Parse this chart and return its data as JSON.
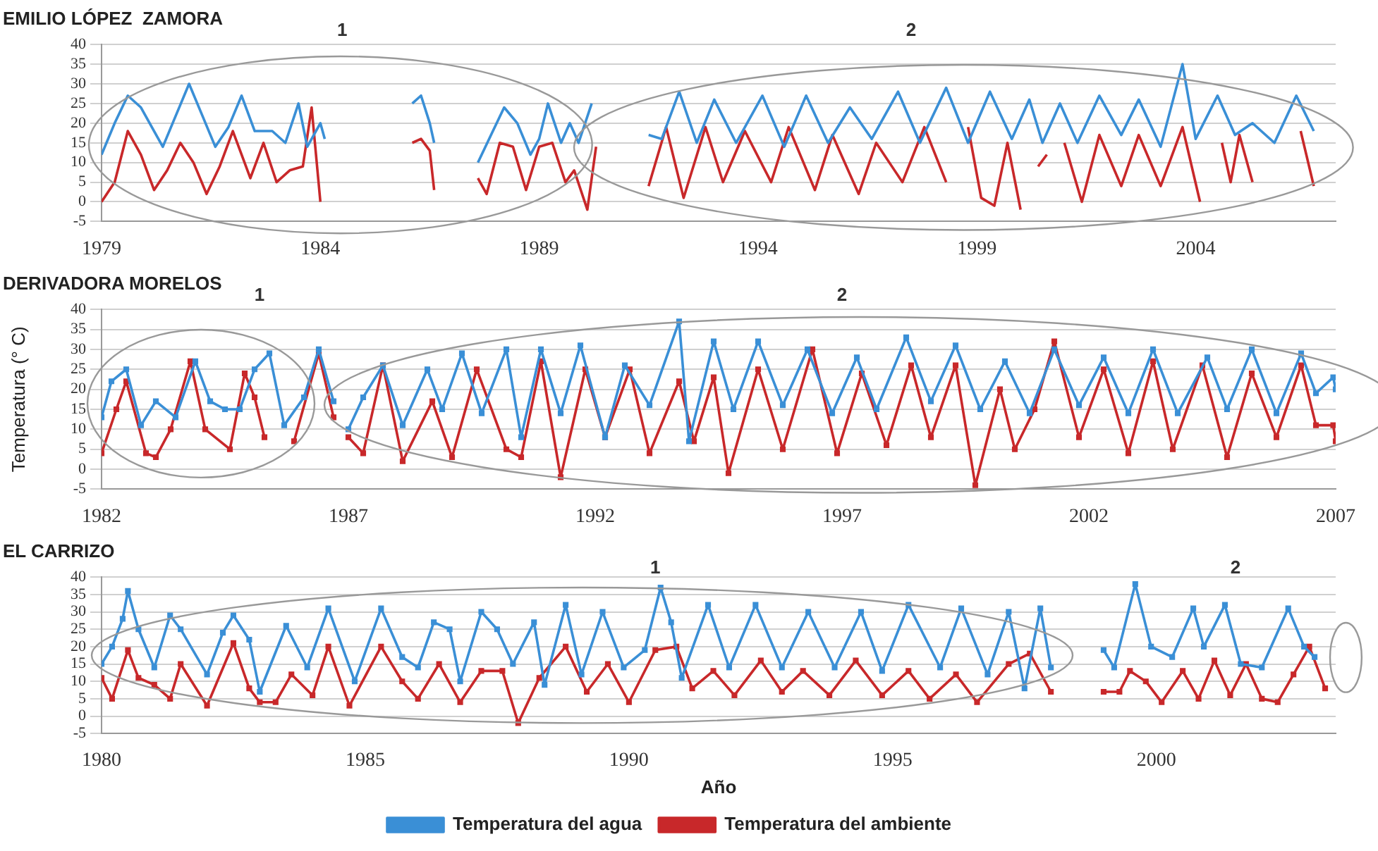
{
  "chart_data": [
    {
      "type": "line",
      "title": "EMILIO LÓPEZ  ZAMORA",
      "annotations": [
        "1",
        "2"
      ],
      "xlim": [
        1979,
        2007.2
      ],
      "xticks": [
        1979,
        1984,
        1989,
        1994,
        1999,
        2004
      ],
      "ylim": [
        -5,
        40
      ],
      "yticks": [
        -5,
        0,
        5,
        10,
        15,
        20,
        25,
        30,
        35,
        40
      ],
      "grid": "y",
      "marker": "none",
      "tick_labels": "xy",
      "series": [
        {
          "color": "#3a8fd6",
          "x": [
            1979.0,
            1979.3,
            1979.6,
            1979.9,
            1980.2,
            1980.4,
            1980.7,
            1981.0,
            1981.3,
            1981.6,
            1981.9,
            1982.2,
            1982.5,
            1982.9,
            1983.2,
            1983.5,
            1983.7,
            1984.0,
            1984.1,
            1985.0,
            1986.1,
            1986.3,
            1986.5,
            1986.6,
            1987.0,
            1987.6,
            1987.9,
            1988.2,
            1988.5,
            1988.8,
            1989.0,
            1989.2,
            1989.5,
            1989.7,
            1989.9,
            1990.2,
            1990.8,
            1991.5,
            1991.8,
            1992.2,
            1992.6,
            1993.0,
            1993.5,
            1994.1,
            1994.6,
            1995.1,
            1995.6,
            1996.1,
            1996.6,
            1997.2,
            1997.7,
            1998.3,
            1998.8,
            1999.3,
            1999.8,
            2000.2,
            2000.5,
            2000.9,
            2001.3,
            2001.8,
            2002.3,
            2002.7,
            2003.2,
            2003.7,
            2004.0,
            2004.5,
            2004.9,
            2005.3,
            2005.8,
            2006.3,
            2006.7
          ],
          "values": [
            12,
            20,
            27,
            24,
            18,
            14,
            22,
            30,
            22,
            14,
            19,
            27,
            18,
            18,
            15,
            25,
            14,
            20,
            16,
            null,
            25,
            27,
            20,
            15,
            null,
            10,
            17,
            24,
            20,
            12,
            16,
            25,
            15,
            20,
            15,
            25,
            null,
            17,
            16,
            28,
            15,
            26,
            15,
            27,
            14,
            27,
            15,
            24,
            16,
            28,
            15,
            29,
            15,
            28,
            16,
            26,
            15,
            25,
            15,
            27,
            17,
            26,
            14,
            35,
            16,
            27,
            17,
            20,
            15,
            27,
            18
          ]
        },
        {
          "color": "#c8282a",
          "x": [
            1979.0,
            1979.3,
            1979.6,
            1979.9,
            1980.2,
            1980.5,
            1980.8,
            1981.1,
            1981.4,
            1981.7,
            1982.0,
            1982.4,
            1982.7,
            1983.0,
            1983.3,
            1983.6,
            1983.8,
            1984.0,
            1985.0,
            1986.1,
            1986.3,
            1986.5,
            1986.6,
            1987.0,
            1987.6,
            1987.8,
            1988.1,
            1988.4,
            1988.7,
            1989.0,
            1989.3,
            1989.6,
            1989.8,
            1990.1,
            1990.3,
            1990.8,
            1991.5,
            1991.9,
            1992.3,
            1992.8,
            1993.2,
            1993.7,
            1994.3,
            1994.7,
            1995.3,
            1995.7,
            1996.3,
            1996.7,
            1997.3,
            1997.8,
            1998.3,
            1998.5,
            1998.8,
            1999.1,
            1999.4,
            1999.7,
            2000.0,
            2000.2,
            2000.4,
            2000.6,
            2000.8,
            2001.0,
            2001.4,
            2001.8,
            2002.3,
            2002.7,
            2003.2,
            2003.7,
            2004.1,
            2004.3,
            2004.6,
            2004.8,
            2005.0,
            2005.3,
            2005.6,
            2006.4,
            2006.7
          ],
          "values": [
            0,
            5,
            18,
            12,
            3,
            8,
            15,
            10,
            2,
            9,
            18,
            6,
            15,
            5,
            8,
            9,
            24,
            0,
            null,
            15,
            16,
            13,
            3,
            null,
            6,
            2,
            15,
            14,
            3,
            14,
            15,
            5,
            8,
            -2,
            14,
            null,
            4,
            19,
            1,
            19,
            5,
            18,
            5,
            19,
            3,
            17,
            2,
            15,
            5,
            19,
            5,
            null,
            19,
            1,
            -1,
            15,
            -2,
            null,
            9,
            12,
            null,
            15,
            0,
            17,
            4,
            17,
            4,
            19,
            0,
            null,
            15,
            5,
            17,
            5,
            null,
            18,
            4
          ]
        }
      ]
    },
    {
      "type": "line",
      "title": "DERIVADORA MORELOS",
      "ylabel": "Temperatura (° C)",
      "annotations": [
        "1",
        "2"
      ],
      "xlim": [
        1982,
        2007
      ],
      "xticks": [
        1982,
        1987,
        1992,
        1997,
        2002,
        2007
      ],
      "ylim": [
        -5,
        40
      ],
      "yticks": [
        -5,
        0,
        5,
        10,
        15,
        20,
        25,
        30,
        35,
        40
      ],
      "grid": "y",
      "marker": "square",
      "series": [
        {
          "color": "#3a8fd6",
          "x": [
            1982.0,
            1982.2,
            1982.5,
            1982.8,
            1983.1,
            1983.5,
            1983.9,
            1984.2,
            1984.5,
            1984.8,
            1985.1,
            1985.4,
            1985.7,
            1986.1,
            1986.4,
            1986.7,
            1986.9,
            1987.0,
            1987.3,
            1987.7,
            1988.1,
            1988.6,
            1988.9,
            1989.3,
            1989.7,
            1990.2,
            1990.5,
            1990.9,
            1991.3,
            1991.7,
            1992.2,
            1992.6,
            1993.1,
            1993.7,
            1993.9,
            1994.4,
            1994.8,
            1995.3,
            1995.8,
            1996.3,
            1996.8,
            1997.3,
            1997.7,
            1998.3,
            1998.8,
            1999.3,
            1999.8,
            2000.3,
            2000.8,
            2001.3,
            2001.8,
            2002.3,
            2002.8,
            2003.3,
            2003.8,
            2004.4,
            2004.8,
            2005.3,
            2005.8,
            2006.3,
            2006.6,
            2006.95,
            2007.0
          ],
          "values": [
            13,
            22,
            25,
            11,
            17,
            13,
            27,
            17,
            15,
            15,
            25,
            29,
            11,
            18,
            30,
            17,
            null,
            10,
            18,
            26,
            11,
            25,
            15,
            29,
            14,
            30,
            8,
            30,
            14,
            31,
            8,
            26,
            16,
            37,
            7,
            32,
            15,
            32,
            16,
            30,
            14,
            28,
            15,
            33,
            17,
            31,
            15,
            27,
            14,
            30,
            16,
            28,
            14,
            30,
            14,
            28,
            15,
            30,
            14,
            29,
            19,
            23,
            20
          ]
        },
        {
          "color": "#c8282a",
          "x": [
            1982.0,
            1982.3,
            1982.5,
            1982.9,
            1983.1,
            1983.4,
            1983.8,
            1984.1,
            1984.6,
            1984.9,
            1985.1,
            1985.3,
            1985.6,
            1985.9,
            1986.4,
            1986.7,
            1986.9,
            1987.0,
            1987.3,
            1987.7,
            1988.1,
            1988.7,
            1989.1,
            1989.6,
            1990.2,
            1990.5,
            1990.9,
            1991.3,
            1991.8,
            1992.2,
            1992.7,
            1993.1,
            1993.7,
            1994.0,
            1994.4,
            1994.7,
            1995.3,
            1995.8,
            1996.4,
            1996.9,
            1997.4,
            1997.9,
            1998.4,
            1998.8,
            1999.3,
            1999.7,
            2000.2,
            2000.5,
            2000.9,
            2001.3,
            2001.8,
            2002.3,
            2002.8,
            2003.3,
            2003.7,
            2004.3,
            2004.8,
            2005.3,
            2005.8,
            2006.3,
            2006.6,
            2006.95,
            2007.0
          ],
          "values": [
            4,
            15,
            22,
            4,
            3,
            10,
            27,
            10,
            5,
            24,
            18,
            8,
            null,
            7,
            29,
            13,
            null,
            8,
            4,
            26,
            2,
            17,
            3,
            25,
            5,
            3,
            27,
            -2,
            25,
            8,
            25,
            4,
            22,
            7,
            23,
            -1,
            25,
            5,
            30,
            4,
            24,
            6,
            26,
            8,
            26,
            -4,
            20,
            5,
            15,
            32,
            8,
            25,
            4,
            27,
            5,
            26,
            3,
            24,
            8,
            26,
            11,
            11,
            7
          ]
        }
      ]
    },
    {
      "type": "line",
      "title": "EL CARRIZO",
      "xlabel": "Año",
      "annotations": [
        "1",
        "2"
      ],
      "xlim": [
        1980,
        2003.4
      ],
      "xticks": [
        1980,
        1985,
        1990,
        1995,
        2000
      ],
      "ylim": [
        -5,
        40
      ],
      "yticks": [
        -5,
        0,
        5,
        10,
        15,
        20,
        25,
        30,
        35,
        40
      ],
      "grid": "y",
      "marker": "square",
      "legend": "bottom",
      "series": [
        {
          "name": "Temperatura del agua",
          "color": "#3a8fd6",
          "x": [
            1980.0,
            1980.2,
            1980.4,
            1980.5,
            1980.7,
            1981.0,
            1981.3,
            1981.5,
            1982.0,
            1982.3,
            1982.5,
            1982.8,
            1983.0,
            1983.5,
            1983.9,
            1984.3,
            1984.8,
            1985.3,
            1985.7,
            1986.0,
            1986.3,
            1986.6,
            1986.8,
            1987.2,
            1987.5,
            1987.8,
            1988.2,
            1988.4,
            1988.8,
            1989.1,
            1989.5,
            1989.9,
            1990.3,
            1990.6,
            1990.8,
            1991.0,
            1991.5,
            1991.9,
            1992.4,
            1992.9,
            1993.4,
            1993.9,
            1994.4,
            1994.8,
            1995.3,
            1995.9,
            1996.3,
            1996.8,
            1997.2,
            1997.5,
            1997.8,
            1998.0,
            1998.5,
            1999.0,
            1999.2,
            1999.6,
            1999.9,
            2000.3,
            2000.7,
            2000.9,
            2001.3,
            2001.6,
            2002.0,
            2002.5,
            2002.8,
            2003.0
          ],
          "values": [
            15,
            20,
            28,
            36,
            25,
            14,
            29,
            25,
            12,
            24,
            29,
            22,
            7,
            26,
            14,
            31,
            10,
            31,
            17,
            14,
            27,
            25,
            10,
            30,
            25,
            15,
            27,
            9,
            32,
            12,
            30,
            14,
            19,
            37,
            27,
            11,
            32,
            14,
            32,
            14,
            30,
            14,
            30,
            13,
            32,
            14,
            31,
            12,
            30,
            8,
            31,
            14,
            null,
            19,
            14,
            38,
            20,
            17,
            31,
            20,
            32,
            15,
            14,
            31,
            20,
            17
          ]
        },
        {
          "name": "Temperatura del ambiente",
          "color": "#c8282a",
          "x": [
            1980.0,
            1980.2,
            1980.5,
            1980.7,
            1981.0,
            1981.3,
            1981.5,
            1982.0,
            1982.5,
            1982.8,
            1983.0,
            1983.3,
            1983.6,
            1984.0,
            1984.3,
            1984.7,
            1985.3,
            1985.7,
            1986.0,
            1986.4,
            1986.8,
            1987.2,
            1987.6,
            1987.9,
            1988.3,
            1988.8,
            1989.2,
            1989.6,
            1990.0,
            1990.5,
            1990.9,
            1991.2,
            1991.6,
            1992.0,
            1992.5,
            1992.9,
            1993.3,
            1993.8,
            1994.3,
            1994.8,
            1995.3,
            1995.7,
            1996.2,
            1996.6,
            1997.2,
            1997.6,
            1998.0,
            1998.5,
            1999.0,
            1999.3,
            1999.5,
            1999.8,
            2000.1,
            2000.5,
            2000.8,
            2001.1,
            2001.4,
            2001.7,
            2002.0,
            2002.3,
            2002.6,
            2002.9,
            2003.2
          ],
          "values": [
            11,
            5,
            19,
            11,
            9,
            5,
            15,
            3,
            21,
            8,
            4,
            4,
            12,
            6,
            20,
            3,
            20,
            10,
            5,
            15,
            4,
            13,
            13,
            -2,
            11,
            20,
            7,
            15,
            4,
            19,
            20,
            8,
            13,
            6,
            16,
            7,
            13,
            6,
            16,
            6,
            13,
            5,
            12,
            4,
            15,
            18,
            7,
            null,
            7,
            7,
            13,
            10,
            4,
            13,
            5,
            16,
            6,
            15,
            5,
            4,
            12,
            20,
            8
          ]
        }
      ]
    }
  ]
}
